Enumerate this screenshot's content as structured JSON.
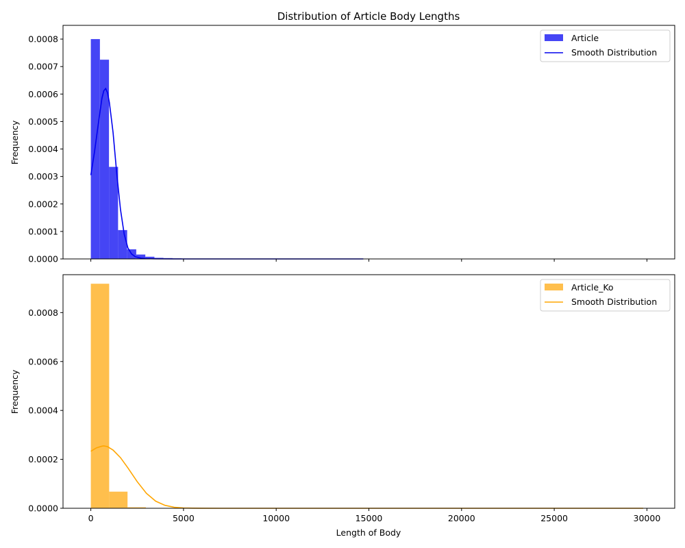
{
  "chart_data": [
    {
      "type": "bar",
      "title": "Distribution of Article Body Lengths",
      "xlabel": "",
      "ylabel": "Frequency",
      "xlim": [
        -1500,
        31500
      ],
      "ylim": [
        0,
        0.00085
      ],
      "yticks": [
        "0.0000",
        "0.0001",
        "0.0002",
        "0.0003",
        "0.0004",
        "0.0005",
        "0.0006",
        "0.0007",
        "0.0008"
      ],
      "ytick_values": [
        0,
        0.0001,
        0.0002,
        0.0003,
        0.0004,
        0.0005,
        0.0006,
        0.0007,
        0.0008
      ],
      "xtick_values": [
        0,
        5000,
        10000,
        15000,
        20000,
        25000,
        30000
      ],
      "legend_position": "top-right",
      "series": [
        {
          "name": "Article",
          "kind": "histogram",
          "color": "#4545f5",
          "bin_width": 490,
          "bin_starts": [
            0,
            490,
            980,
            1470,
            1960,
            2450,
            2940,
            3430,
            3920,
            4410,
            4900,
            5390,
            5880,
            6370,
            6860,
            7350,
            7840,
            8330,
            8820,
            9310,
            9800,
            10290,
            10780,
            11270,
            11760,
            12250,
            12740,
            13230,
            13720,
            14210
          ],
          "values": [
            0.0008,
            0.000725,
            0.000335,
            0.000105,
            3.5e-05,
            1.6e-05,
            8e-06,
            4e-06,
            3e-06,
            2e-06,
            1e-06,
            1e-06,
            1e-06,
            1e-06,
            1e-06,
            5e-07,
            5e-07,
            5e-07,
            5e-07,
            5e-07,
            5e-07,
            5e-07,
            5e-07,
            5e-07,
            5e-07,
            5e-07,
            5e-07,
            5e-07,
            5e-07,
            5e-07
          ]
        },
        {
          "name": "Smooth Distribution",
          "kind": "line",
          "color": "#0000ee",
          "x": [
            0,
            200,
            400,
            600,
            700,
            800,
            900,
            1000,
            1200,
            1400,
            1600,
            1800,
            2000,
            2200,
            2400,
            2700,
            3000,
            3500,
            4500,
            6000,
            10000,
            14700
          ],
          "y": [
            0.000305,
            0.00039,
            0.00049,
            0.000585,
            0.000612,
            0.00062,
            0.000605,
            0.00057,
            0.00046,
            0.00031,
            0.00018,
            9e-05,
            4e-05,
            1.8e-05,
            8e-06,
            3e-06,
            1e-06,
            3e-07,
            0,
            0,
            0,
            0
          ]
        }
      ]
    },
    {
      "type": "bar",
      "title": "",
      "xlabel": "Length of Body",
      "ylabel": "Frequency",
      "xlim": [
        -1500,
        31500
      ],
      "ylim": [
        0,
        0.000955
      ],
      "yticks": [
        "0.0000",
        "0.0002",
        "0.0004",
        "0.0006",
        "0.0008"
      ],
      "ytick_values": [
        0,
        0.0002,
        0.0004,
        0.0006,
        0.0008
      ],
      "xticks": [
        "0",
        "5000",
        "10000",
        "15000",
        "20000",
        "25000",
        "30000"
      ],
      "xtick_values": [
        0,
        5000,
        10000,
        15000,
        20000,
        25000,
        30000
      ],
      "legend_position": "top-right",
      "series": [
        {
          "name": "Article_Ko",
          "kind": "histogram",
          "color": "#ffbf4d",
          "bin_width": 990,
          "bin_starts": [
            0,
            990,
            1980,
            2970,
            3960,
            4950,
            5940
          ],
          "values": [
            0.000918,
            6.8e-05,
            4e-06,
            1e-06,
            5e-07,
            5e-07,
            5e-07
          ]
        },
        {
          "name": "Smooth Distribution",
          "kind": "line",
          "color": "#ffa500",
          "x": [
            0,
            300,
            600,
            700,
            900,
            1200,
            1600,
            2000,
            2500,
            3000,
            3500,
            4000,
            4500,
            5000,
            5500,
            6000,
            7000,
            9000,
            15000,
            22000,
            29800
          ],
          "y": [
            0.000233,
            0.000247,
            0.000254,
            0.000255,
            0.000252,
            0.000238,
            0.000207,
            0.000165,
            0.000109,
            6.1e-05,
            2.9e-05,
            1.2e-05,
            4e-06,
            1.3e-06,
            4e-07,
            1e-07,
            0,
            0,
            0,
            0,
            0
          ]
        }
      ]
    }
  ]
}
